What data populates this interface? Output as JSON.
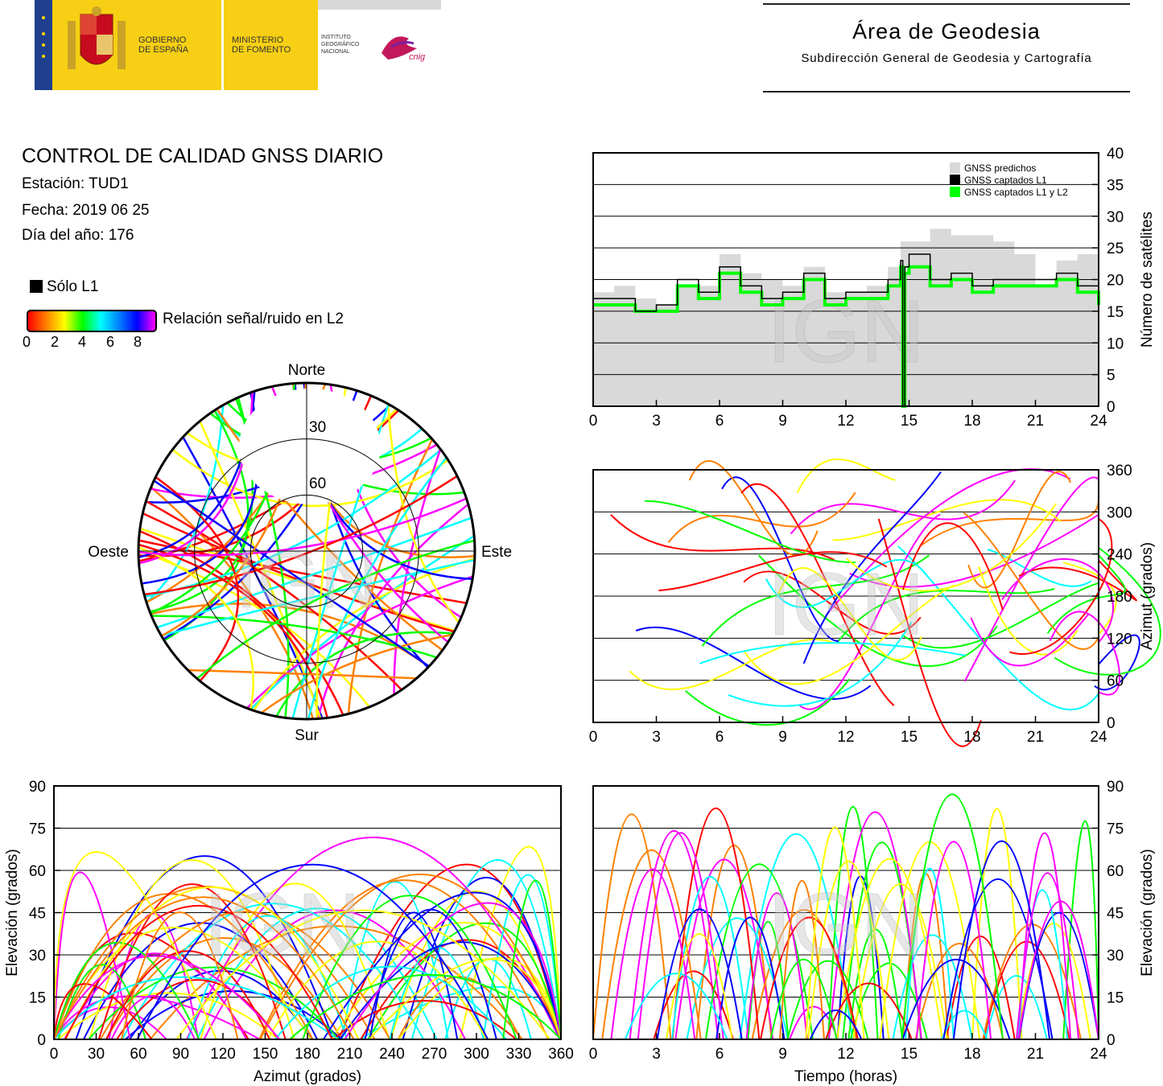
{
  "header": {
    "gov_line1": "GOBIERNO",
    "gov_line2": "DE ESPAÑA",
    "min_line1": "MINISTERIO",
    "min_line2": "DE FOMENTO",
    "ign_line1": "INSTITUTO",
    "ign_line2": "GEOGRÁFICO",
    "ign_line3": "NACIONAL",
    "cnig": "cnig",
    "area_title": "Área de Geodesia",
    "area_subtitle": "Subdirección General de Geodesia y Cartografía"
  },
  "report": {
    "title": "CONTROL DE CALIDAD GNSS DIARIO",
    "station": "Estación: TUD1",
    "date": "Fecha: 2019 06 25",
    "doy": "Día del año: 176",
    "legend_l1": "Sólo L1",
    "legend_snr": "Relación señal/ruido en L2",
    "snr_ticks": [
      "0",
      "2",
      "4",
      "6",
      "8"
    ]
  },
  "colors": {
    "predicted": "#d9d9d9",
    "l1": "#000000",
    "l1l2": "#00ff00",
    "snr_gradient": [
      "#ff0000",
      "#ff8000",
      "#ffff00",
      "#00ff00",
      "#00ffff",
      "#0000ff",
      "#ff00ff"
    ]
  },
  "watermark": "IGN",
  "chart_data": [
    {
      "type": "area",
      "id": "satellite-count",
      "ylabel": "Número de satélites",
      "xlim": [
        0,
        24
      ],
      "ylim": [
        0,
        40
      ],
      "xticks": [
        0,
        3,
        6,
        9,
        12,
        15,
        18,
        21,
        24
      ],
      "yticks": [
        0,
        5,
        10,
        15,
        20,
        25,
        30,
        35,
        40
      ],
      "legend_position": "top-right",
      "series": [
        {
          "name": "GNSS predichos",
          "x": [
            0,
            1,
            2,
            3,
            4,
            5,
            6,
            7,
            8,
            9,
            10,
            11,
            12,
            13,
            14,
            14.6,
            15,
            16,
            17,
            18,
            19,
            20,
            21,
            22,
            23,
            24
          ],
          "values": [
            18,
            19,
            17,
            16,
            19,
            19,
            24,
            21,
            20,
            19,
            22,
            18,
            18,
            19,
            22,
            26,
            26,
            28,
            27,
            27,
            26,
            24,
            19,
            23,
            24,
            23
          ]
        },
        {
          "name": "GNSS captados L1",
          "x": [
            0,
            1,
            2,
            3,
            4,
            5,
            6,
            7,
            8,
            9,
            10,
            11,
            12,
            13,
            14,
            14.6,
            14.7,
            14.8,
            15,
            16,
            17,
            18,
            19,
            20,
            21,
            22,
            23,
            24
          ],
          "values": [
            17,
            17,
            15,
            16,
            20,
            18,
            22,
            19,
            17,
            18,
            21,
            17,
            18,
            18,
            20,
            23,
            0,
            22,
            24,
            20,
            21,
            19,
            20,
            20,
            20,
            21,
            19,
            17
          ]
        },
        {
          "name": "GNSS captados L1 y L2",
          "x": [
            0,
            1,
            2,
            3,
            4,
            5,
            6,
            7,
            8,
            9,
            10,
            11,
            12,
            13,
            14,
            14.6,
            14.7,
            14.8,
            15,
            16,
            17,
            18,
            19,
            20,
            21,
            22,
            23,
            24
          ],
          "values": [
            16,
            16,
            15,
            15,
            19,
            17,
            21,
            18,
            16,
            17,
            20,
            16,
            17,
            17,
            19,
            22,
            0,
            21,
            22,
            19,
            20,
            18,
            19,
            19,
            19,
            20,
            18,
            16
          ]
        }
      ]
    },
    {
      "type": "scatter",
      "id": "skyplot",
      "labels": {
        "north": "Norte",
        "south": "Sur",
        "east": "Este",
        "west": "Oeste"
      },
      "rings": [
        "30",
        "60"
      ]
    },
    {
      "type": "scatter",
      "id": "azimuth-time",
      "ylabel": "Azimut (grados)",
      "xlim": [
        0,
        24
      ],
      "ylim": [
        0,
        360
      ],
      "xticks": [
        0,
        3,
        6,
        9,
        12,
        15,
        18,
        21,
        24
      ],
      "yticks": [
        0,
        60,
        120,
        180,
        240,
        300,
        360
      ]
    },
    {
      "type": "scatter",
      "id": "elevation-azimuth",
      "xlabel": "Azimut (grados)",
      "ylabel": "Elevación (grados)",
      "xlim": [
        0,
        360
      ],
      "ylim": [
        0,
        90
      ],
      "xticks": [
        0,
        30,
        60,
        90,
        120,
        150,
        180,
        210,
        240,
        270,
        300,
        330,
        360
      ],
      "yticks": [
        0,
        15,
        30,
        45,
        60,
        75,
        90
      ]
    },
    {
      "type": "scatter",
      "id": "elevation-time",
      "xlabel": "Tiempo (horas)",
      "ylabel": "Elevación (grados)",
      "xlim": [
        0,
        24
      ],
      "ylim": [
        0,
        90
      ],
      "xticks": [
        0,
        3,
        6,
        9,
        12,
        15,
        18,
        21,
        24
      ],
      "yticks": [
        0,
        15,
        30,
        45,
        60,
        75,
        90
      ]
    }
  ]
}
